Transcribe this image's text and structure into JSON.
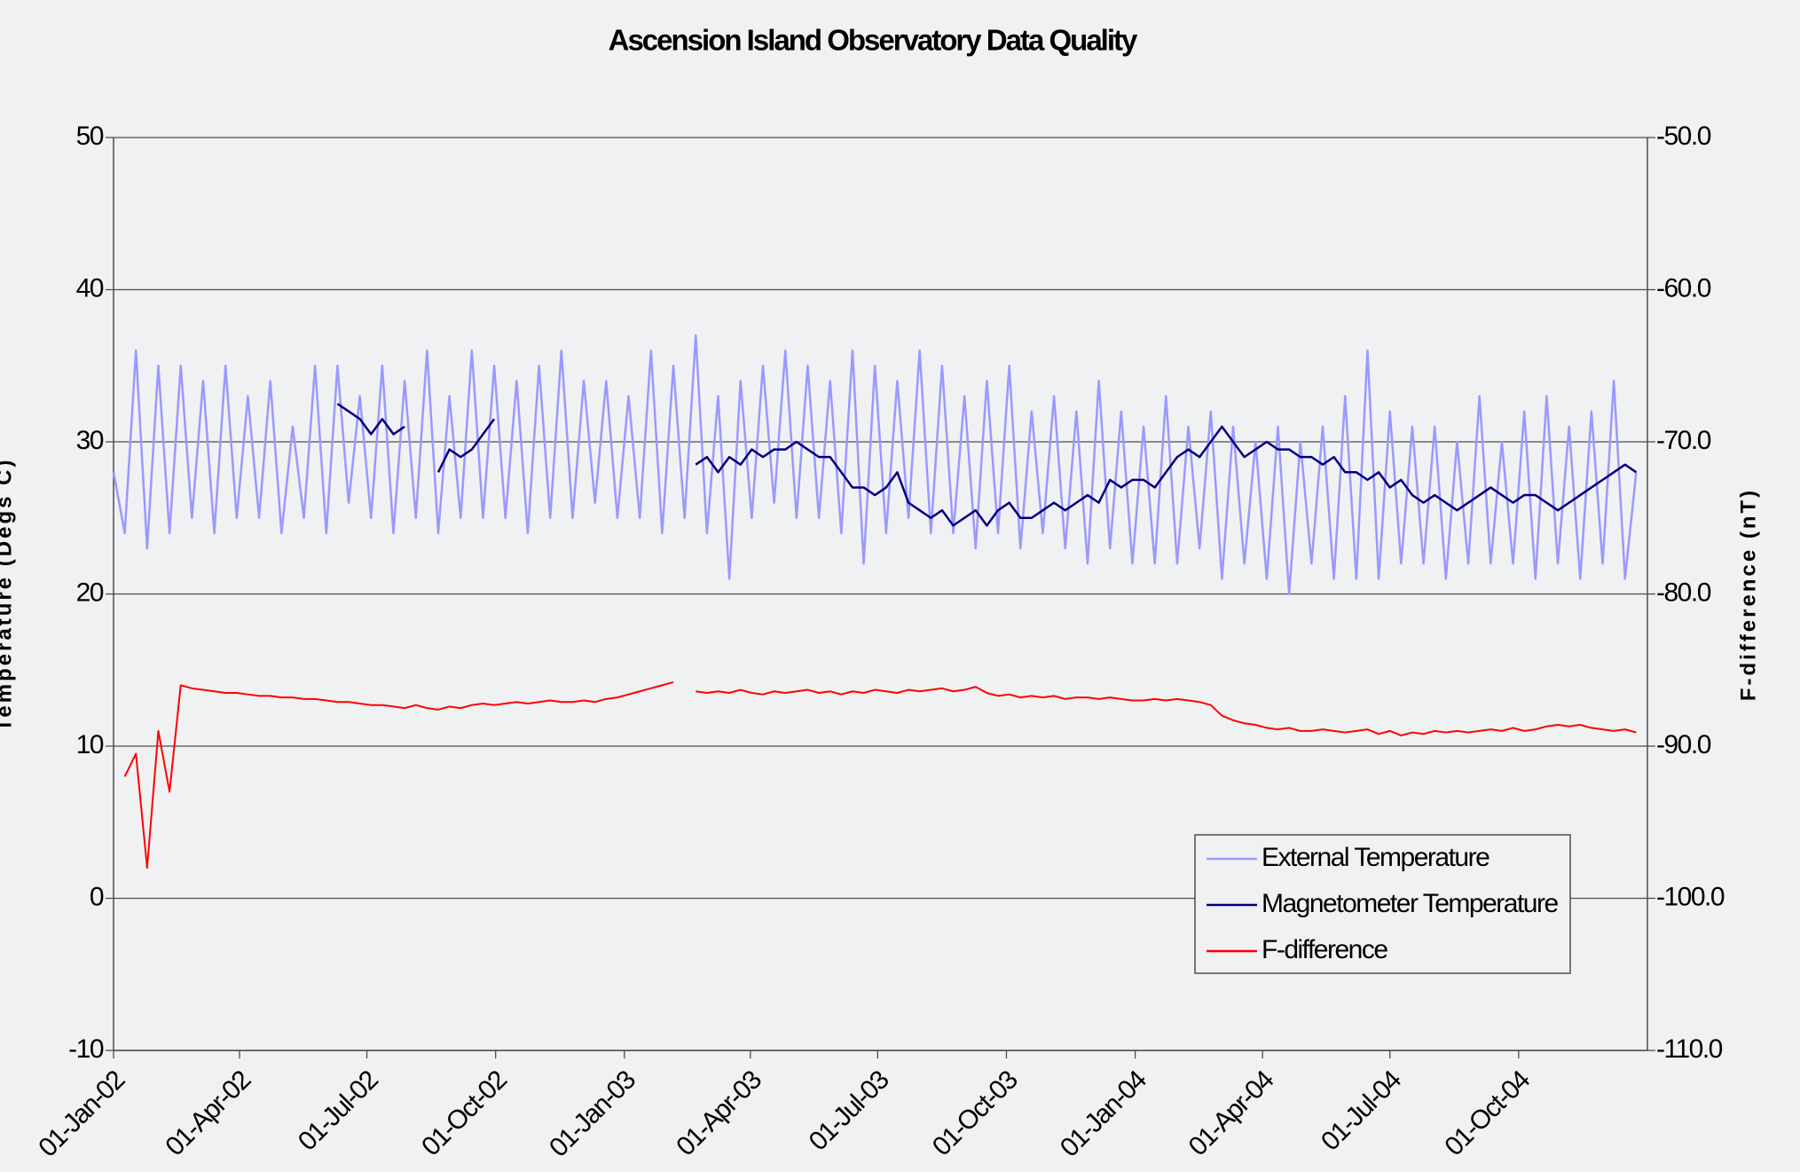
{
  "chart_data": {
    "type": "line",
    "title": "Ascension Island Observatory Data Quality",
    "ylabel": "Temperature (Degs C)",
    "y2label": "F-difference (nT)",
    "xlim": [
      "2002-01-01",
      "2005-01-01"
    ],
    "xticks": [
      {
        "value": "2002-01-01",
        "label": "01-Jan-02"
      },
      {
        "value": "2002-04-01",
        "label": "01-Apr-02"
      },
      {
        "value": "2002-07-01",
        "label": "01-Jul-02"
      },
      {
        "value": "2002-10-01",
        "label": "01-Oct-02"
      },
      {
        "value": "2003-01-01",
        "label": "01-Jan-03"
      },
      {
        "value": "2003-04-01",
        "label": "01-Apr-03"
      },
      {
        "value": "2003-07-01",
        "label": "01-Jul-03"
      },
      {
        "value": "2003-10-01",
        "label": "01-Oct-03"
      },
      {
        "value": "2004-01-01",
        "label": "01-Jan-04"
      },
      {
        "value": "2004-04-01",
        "label": "01-Apr-04"
      },
      {
        "value": "2004-07-01",
        "label": "01-Jul-04"
      },
      {
        "value": "2004-10-01",
        "label": "01-Oct-04"
      }
    ],
    "ylim": [
      -10,
      50
    ],
    "yticks": [
      -10,
      0,
      10,
      20,
      30,
      40,
      50
    ],
    "y2lim": [
      -110,
      -50
    ],
    "y2ticks": [
      {
        "value": -110,
        "label": "-110.0"
      },
      {
        "value": -100,
        "label": "-100.0"
      },
      {
        "value": -90,
        "label": "-90.0"
      },
      {
        "value": -80,
        "label": "-80.0"
      },
      {
        "value": -70,
        "label": "-70.0"
      },
      {
        "value": -60,
        "label": "-60.0"
      },
      {
        "value": -50,
        "label": "-50.0"
      }
    ],
    "grid": true,
    "legend": "lower right",
    "x": [
      "2002-01-01",
      "2002-01-09",
      "2002-01-17",
      "2002-01-25",
      "2002-02-02",
      "2002-02-10",
      "2002-02-18",
      "2002-02-26",
      "2002-03-06",
      "2002-03-14",
      "2002-03-22",
      "2002-03-30",
      "2002-04-07",
      "2002-04-15",
      "2002-04-23",
      "2002-05-01",
      "2002-05-09",
      "2002-05-17",
      "2002-05-25",
      "2002-06-02",
      "2002-06-10",
      "2002-06-18",
      "2002-06-26",
      "2002-07-04",
      "2002-07-12",
      "2002-07-20",
      "2002-07-28",
      "2002-08-05",
      "2002-08-13",
      "2002-08-21",
      "2002-08-29",
      "2002-09-06",
      "2002-09-14",
      "2002-09-22",
      "2002-09-30",
      "2002-10-08",
      "2002-10-16",
      "2002-10-24",
      "2002-11-01",
      "2002-11-09",
      "2002-11-17",
      "2002-11-25",
      "2002-12-03",
      "2002-12-11",
      "2002-12-19",
      "2002-12-27",
      "2003-01-04",
      "2003-01-12",
      "2003-01-20",
      "2003-01-28",
      "2003-02-05",
      "2003-02-13",
      "2003-02-21",
      "2003-03-01",
      "2003-03-09",
      "2003-03-17",
      "2003-03-25",
      "2003-04-02",
      "2003-04-10",
      "2003-04-18",
      "2003-04-26",
      "2003-05-04",
      "2003-05-12",
      "2003-05-20",
      "2003-05-28",
      "2003-06-05",
      "2003-06-13",
      "2003-06-21",
      "2003-06-29",
      "2003-07-07",
      "2003-07-15",
      "2003-07-23",
      "2003-07-31",
      "2003-08-08",
      "2003-08-16",
      "2003-08-24",
      "2003-09-01",
      "2003-09-09",
      "2003-09-17",
      "2003-09-25",
      "2003-10-03",
      "2003-10-11",
      "2003-10-19",
      "2003-10-27",
      "2003-11-04",
      "2003-11-12",
      "2003-11-20",
      "2003-11-28",
      "2003-12-06",
      "2003-12-14",
      "2003-12-22",
      "2003-12-30",
      "2004-01-07",
      "2004-01-15",
      "2004-01-23",
      "2004-01-31",
      "2004-02-08",
      "2004-02-16",
      "2004-02-24",
      "2004-03-03",
      "2004-03-11",
      "2004-03-19",
      "2004-03-27",
      "2004-04-04",
      "2004-04-12",
      "2004-04-20",
      "2004-04-28",
      "2004-05-06",
      "2004-05-14",
      "2004-05-22",
      "2004-05-30",
      "2004-06-07",
      "2004-06-15",
      "2004-06-23",
      "2004-07-01",
      "2004-07-09",
      "2004-07-17",
      "2004-07-25",
      "2004-08-02",
      "2004-08-10",
      "2004-08-18",
      "2004-08-26",
      "2004-09-03",
      "2004-09-11",
      "2004-09-19",
      "2004-09-27",
      "2004-10-05",
      "2004-10-13",
      "2004-10-21",
      "2004-10-29",
      "2004-11-06",
      "2004-11-14",
      "2004-11-22",
      "2004-11-30",
      "2004-12-08",
      "2004-12-16",
      "2004-12-24"
    ],
    "series": [
      {
        "name": "External Temperature",
        "color": "#9999ff",
        "axis": "y",
        "values": [
          28,
          24,
          36,
          23,
          35,
          24,
          35,
          25,
          34,
          24,
          35,
          25,
          33,
          25,
          34,
          24,
          31,
          25,
          35,
          24,
          35,
          26,
          33,
          25,
          35,
          24,
          34,
          25,
          36,
          24,
          33,
          25,
          36,
          25,
          35,
          25,
          34,
          24,
          35,
          25,
          36,
          25,
          34,
          26,
          34,
          25,
          33,
          25,
          36,
          24,
          35,
          25,
          37,
          24,
          33,
          21,
          34,
          25,
          35,
          26,
          36,
          25,
          35,
          25,
          34,
          24,
          36,
          22,
          35,
          24,
          34,
          25,
          36,
          24,
          35,
          24,
          33,
          23,
          34,
          24,
          35,
          23,
          32,
          24,
          33,
          23,
          32,
          22,
          34,
          23,
          32,
          22,
          31,
          22,
          33,
          22,
          31,
          23,
          32,
          21,
          31,
          22,
          30,
          21,
          31,
          20,
          30,
          22,
          31,
          21,
          33,
          21,
          36,
          21,
          32,
          22,
          31,
          22,
          31,
          21,
          30,
          22,
          33,
          22,
          30,
          22,
          32,
          21,
          33,
          22,
          31,
          21,
          32,
          22,
          34,
          21,
          28
        ]
      },
      {
        "name": "Magnetometer Temperature",
        "color": "#000080",
        "axis": "y",
        "values": [
          null,
          null,
          null,
          null,
          null,
          null,
          null,
          null,
          null,
          null,
          null,
          null,
          null,
          null,
          null,
          null,
          null,
          null,
          null,
          null,
          32.5,
          32,
          31.5,
          30.5,
          31.5,
          30.5,
          31,
          null,
          null,
          28,
          29.5,
          29,
          29.5,
          30.5,
          31.5,
          null,
          null,
          null,
          null,
          null,
          null,
          null,
          null,
          null,
          null,
          null,
          null,
          null,
          null,
          null,
          null,
          null,
          28.5,
          29,
          28,
          29,
          28.5,
          29.5,
          29,
          29.5,
          29.5,
          30,
          29.5,
          29,
          29,
          28,
          27,
          27,
          26.5,
          27,
          28,
          26,
          25.5,
          25,
          25.5,
          24.5,
          25,
          25.5,
          24.5,
          25.5,
          26,
          25,
          25,
          25.5,
          26,
          25.5,
          26,
          26.5,
          26,
          27.5,
          27,
          27.5,
          27.5,
          27,
          28,
          29,
          29.5,
          29,
          30,
          31,
          30,
          29,
          29.5,
          30,
          29.5,
          29.5,
          29,
          29,
          28.5,
          29,
          28,
          28,
          27.5,
          28,
          27,
          27.5,
          26.5,
          26,
          26.5,
          26,
          25.5,
          26,
          26.5,
          27,
          26.5,
          26,
          26.5,
          26.5,
          26,
          25.5,
          26,
          26.5,
          27,
          27.5,
          28,
          28.5,
          28
        ]
      },
      {
        "name": "F-difference",
        "color": "#ff0000",
        "axis": "y2",
        "values": [
          null,
          -92,
          -90.5,
          -98,
          -89,
          -93,
          -86,
          -86.2,
          -86.3,
          -86.4,
          -86.5,
          -86.5,
          -86.6,
          -86.7,
          -86.7,
          -86.8,
          -86.8,
          -86.9,
          -86.9,
          -87,
          -87.1,
          -87.1,
          -87.2,
          -87.3,
          -87.3,
          -87.4,
          -87.5,
          -87.3,
          -87.5,
          -87.6,
          -87.4,
          -87.5,
          -87.3,
          -87.2,
          -87.3,
          -87.2,
          -87.1,
          -87.2,
          -87.1,
          -87,
          -87.1,
          -87.1,
          -87,
          -87.1,
          -86.9,
          -86.8,
          -86.6,
          -86.4,
          -86.2,
          -86,
          -85.8,
          null,
          -86.4,
          -86.5,
          -86.4,
          -86.5,
          -86.3,
          -86.5,
          -86.6,
          -86.4,
          -86.5,
          -86.4,
          -86.3,
          -86.5,
          -86.4,
          -86.6,
          -86.4,
          -86.5,
          -86.3,
          -86.4,
          -86.5,
          -86.3,
          -86.4,
          -86.3,
          -86.2,
          -86.4,
          -86.3,
          -86.1,
          -86.5,
          -86.7,
          -86.6,
          -86.8,
          -86.7,
          -86.8,
          -86.7,
          -86.9,
          -86.8,
          -86.8,
          -86.9,
          -86.8,
          -86.9,
          -87,
          -87,
          -86.9,
          -87,
          -86.9,
          -87,
          -87.1,
          -87.3,
          -88,
          -88.3,
          -88.5,
          -88.6,
          -88.8,
          -88.9,
          -88.8,
          -89,
          -89,
          -88.9,
          -89,
          -89.1,
          -89,
          -88.9,
          -89.2,
          -89,
          -89.3,
          -89.1,
          -89.2,
          -89,
          -89.1,
          -89,
          -89.1,
          -89,
          -88.9,
          -89,
          -88.8,
          -89,
          -88.9,
          -88.7,
          -88.6,
          -88.7,
          -88.6,
          -88.8,
          -88.9,
          -89,
          -88.9,
          -89.1
        ]
      }
    ]
  }
}
